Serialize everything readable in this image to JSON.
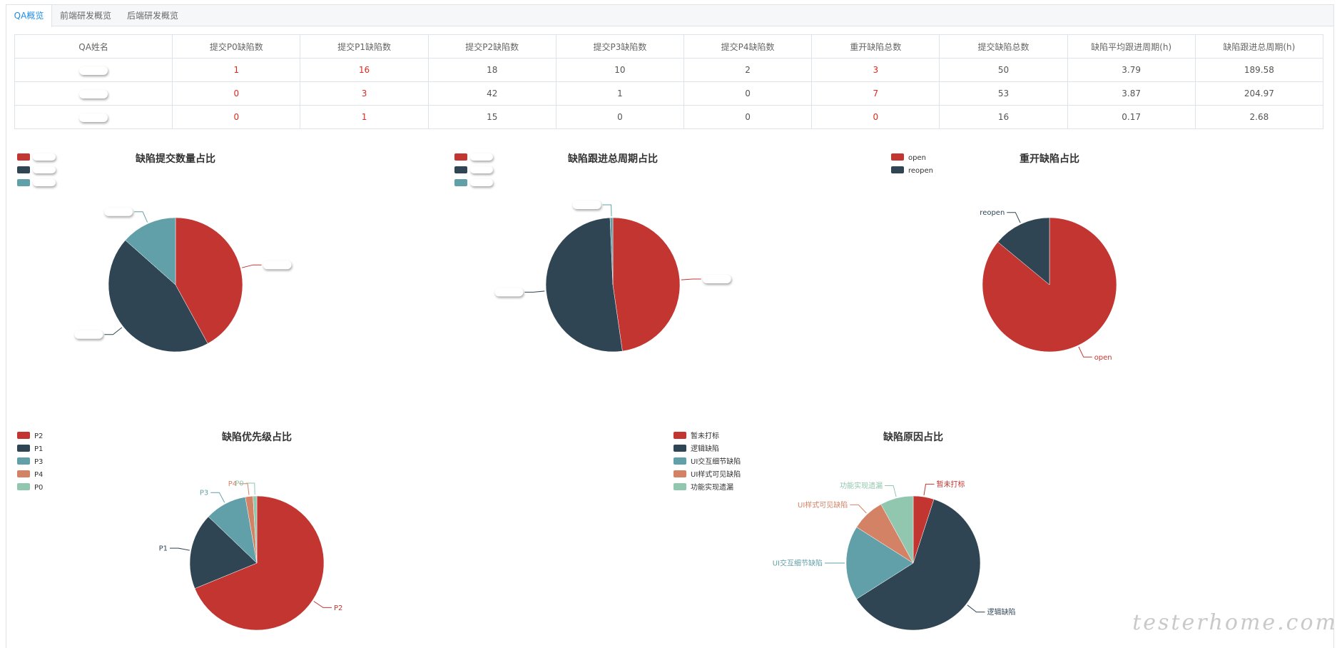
{
  "tabs": [
    {
      "label": "QA概览",
      "active": true
    },
    {
      "label": "前端研发概览",
      "active": false
    },
    {
      "label": "后端研发概览",
      "active": false
    }
  ],
  "table": {
    "headers": [
      "QA姓名",
      "提交P0缺陷数",
      "提交P1缺陷数",
      "提交P2缺陷数",
      "提交P3缺陷数",
      "提交P4缺陷数",
      "重开缺陷总数",
      "提交缺陷总数",
      "缺陷平均跟进周期(h)",
      "缺陷跟进总周期(h)"
    ],
    "rows": [
      {
        "name": "",
        "p0": "1",
        "p1": "16",
        "p2": "18",
        "p3": "10",
        "p4": "2",
        "reopen": "3",
        "total": "50",
        "avg": "3.79",
        "sum": "189.58"
      },
      {
        "name": "",
        "p0": "0",
        "p1": "3",
        "p2": "42",
        "p3": "1",
        "p4": "0",
        "reopen": "7",
        "total": "53",
        "avg": "3.87",
        "sum": "204.97"
      },
      {
        "name": "",
        "p0": "0",
        "p1": "1",
        "p2": "15",
        "p3": "0",
        "p4": "0",
        "reopen": "0",
        "total": "16",
        "avg": "0.17",
        "sum": "2.68"
      }
    ]
  },
  "colors": [
    "#c23531",
    "#2f4554",
    "#61a0a8",
    "#d48265",
    "#91c7ae"
  ],
  "chart_data": [
    {
      "id": "c1",
      "type": "pie",
      "title": "缺陷提交数量占比",
      "labels": [
        "",
        "",
        ""
      ],
      "values": [
        50,
        53,
        16
      ],
      "legend": "top-left",
      "labels_redacted": true
    },
    {
      "id": "c2",
      "type": "pie",
      "title": "缺陷跟进总周期占比",
      "labels": [
        "",
        "",
        ""
      ],
      "values": [
        189.58,
        204.97,
        2.68
      ],
      "legend": "top-left",
      "labels_redacted": true
    },
    {
      "id": "c3",
      "type": "pie",
      "title": "重开缺陷占比",
      "labels": [
        "open",
        "reopen"
      ],
      "values": [
        86,
        14
      ],
      "legend": "top-left",
      "labels_redacted": false
    },
    {
      "id": "c4",
      "type": "pie",
      "title": "缺陷优先级占比",
      "labels": [
        "P2",
        "P1",
        "P3",
        "P4",
        "P0"
      ],
      "values": [
        75,
        20,
        11,
        2,
        1
      ],
      "legend": "top-left",
      "labels_redacted": false
    },
    {
      "id": "c5",
      "type": "pie",
      "title": "缺陷原因占比",
      "labels": [
        "暂未打标",
        "逻辑缺陷",
        "UI交互细节缺陷",
        "UI样式可见缺陷",
        "功能实现遗漏"
      ],
      "values": [
        5,
        61,
        18,
        8,
        8
      ],
      "legend": "top-left",
      "labels_redacted": false
    }
  ],
  "watermark": "testerhome.com"
}
